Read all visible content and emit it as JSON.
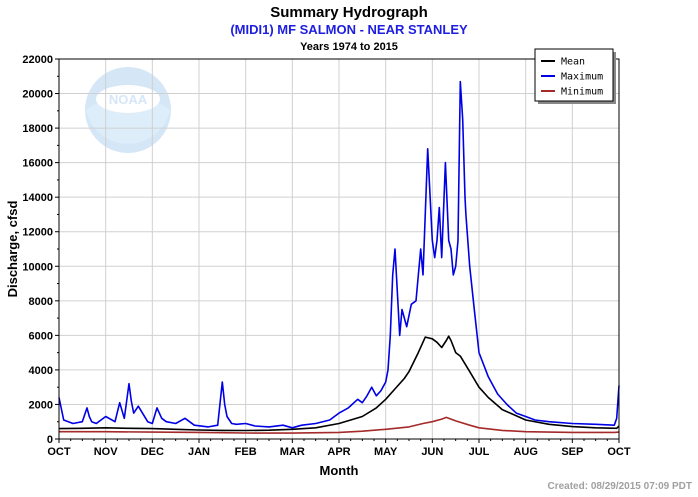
{
  "header": {
    "title": "Summary Hydrograph",
    "subtitle": "(MIDI1) MF SALMON - NEAR STANLEY",
    "years": "Years 1974 to 2015"
  },
  "footer": {
    "created": "Created: 08/29/2015 07:09 PDT"
  },
  "logo": {
    "text": "NOAA"
  },
  "colors": {
    "mean": "#000000",
    "maximum": "#0000e6",
    "minimum": "#a52a2a",
    "grid": "#d0d0d0"
  },
  "chart_data": {
    "type": "line",
    "title": "Summary Hydrograph",
    "subtitle": "(MIDI1) MF SALMON - NEAR STANLEY",
    "xlabel": "Month",
    "ylabel": "Discharge, cfsd",
    "x_ticks": [
      "OCT",
      "NOV",
      "DEC",
      "JAN",
      "FEB",
      "MAR",
      "APR",
      "MAY",
      "JUN",
      "JUL",
      "AUG",
      "SEP",
      "OCT"
    ],
    "y_ticks": [
      0,
      2000,
      4000,
      6000,
      8000,
      10000,
      12000,
      14000,
      16000,
      18000,
      20000,
      22000
    ],
    "ylim": [
      0,
      22000
    ],
    "xlim": [
      0,
      12
    ],
    "grid": true,
    "legend_position": "top-right",
    "series": [
      {
        "name": "Mean",
        "color": "#000000",
        "x": [
          0,
          0.5,
          1,
          1.5,
          2,
          2.5,
          3,
          3.5,
          4,
          4.5,
          5,
          5.5,
          6,
          6.5,
          6.8,
          7,
          7.2,
          7.4,
          7.5,
          7.7,
          7.85,
          8,
          8.1,
          8.2,
          8.3,
          8.35,
          8.4,
          8.5,
          8.6,
          8.8,
          9,
          9.2,
          9.5,
          10,
          10.5,
          11,
          11.5,
          11.95,
          12
        ],
        "y": [
          600,
          620,
          650,
          620,
          600,
          560,
          520,
          500,
          490,
          510,
          560,
          650,
          900,
          1300,
          1800,
          2300,
          2900,
          3500,
          3900,
          5000,
          5900,
          5800,
          5600,
          5300,
          5700,
          5950,
          5700,
          5000,
          4800,
          3900,
          3000,
          2400,
          1700,
          1100,
          850,
          720,
          650,
          620,
          760
        ]
      },
      {
        "name": "Maximum",
        "color": "#0000e6",
        "x": [
          0,
          0.1,
          0.3,
          0.5,
          0.6,
          0.65,
          0.7,
          0.8,
          1,
          1.2,
          1.3,
          1.4,
          1.5,
          1.55,
          1.6,
          1.7,
          1.9,
          2,
          2.1,
          2.2,
          2.3,
          2.5,
          2.7,
          2.9,
          3.2,
          3.4,
          3.5,
          3.55,
          3.6,
          3.7,
          3.8,
          4,
          4.2,
          4.5,
          4.8,
          5,
          5.2,
          5.5,
          5.8,
          6,
          6.2,
          6.4,
          6.5,
          6.6,
          6.7,
          6.8,
          6.9,
          7,
          7.05,
          7.1,
          7.15,
          7.2,
          7.3,
          7.35,
          7.45,
          7.55,
          7.65,
          7.75,
          7.8,
          7.9,
          8,
          8.05,
          8.1,
          8.15,
          8.2,
          8.28,
          8.35,
          8.4,
          8.45,
          8.5,
          8.55,
          8.6,
          8.65,
          8.7,
          8.72,
          8.8,
          8.9,
          9,
          9.2,
          9.4,
          9.6,
          9.8,
          10,
          10.2,
          10.5,
          11,
          11.5,
          11.9,
          11.95,
          12
        ],
        "y": [
          2400,
          1100,
          900,
          1000,
          1800,
          1300,
          1000,
          900,
          1300,
          1000,
          2100,
          1200,
          3200,
          2200,
          1500,
          1900,
          1000,
          900,
          1800,
          1200,
          1000,
          900,
          1200,
          800,
          700,
          800,
          3300,
          2000,
          1300,
          900,
          850,
          900,
          750,
          700,
          800,
          650,
          800,
          900,
          1100,
          1500,
          1800,
          2300,
          2100,
          2500,
          3000,
          2500,
          2800,
          3300,
          4000,
          6000,
          9500,
          11000,
          6000,
          7500,
          6500,
          7800,
          8000,
          11000,
          9500,
          16800,
          11500,
          10500,
          11500,
          13400,
          10500,
          16000,
          11500,
          11000,
          9500,
          10000,
          11500,
          20700,
          18500,
          14000,
          13000,
          10000,
          7500,
          5000,
          3600,
          2600,
          2000,
          1500,
          1300,
          1100,
          1000,
          900,
          850,
          800,
          1200,
          3100
        ]
      },
      {
        "name": "Minimum",
        "color": "#a52a2a",
        "x": [
          0,
          1,
          2,
          3,
          4,
          5,
          6,
          6.5,
          7,
          7.5,
          7.8,
          8,
          8.2,
          8.3,
          8.5,
          8.8,
          9,
          9.5,
          10,
          11,
          11.9,
          12
        ],
        "y": [
          420,
          420,
          400,
          380,
          350,
          340,
          380,
          450,
          560,
          700,
          900,
          1000,
          1150,
          1250,
          1050,
          800,
          650,
          500,
          420,
          380,
          380,
          400
        ]
      }
    ]
  }
}
